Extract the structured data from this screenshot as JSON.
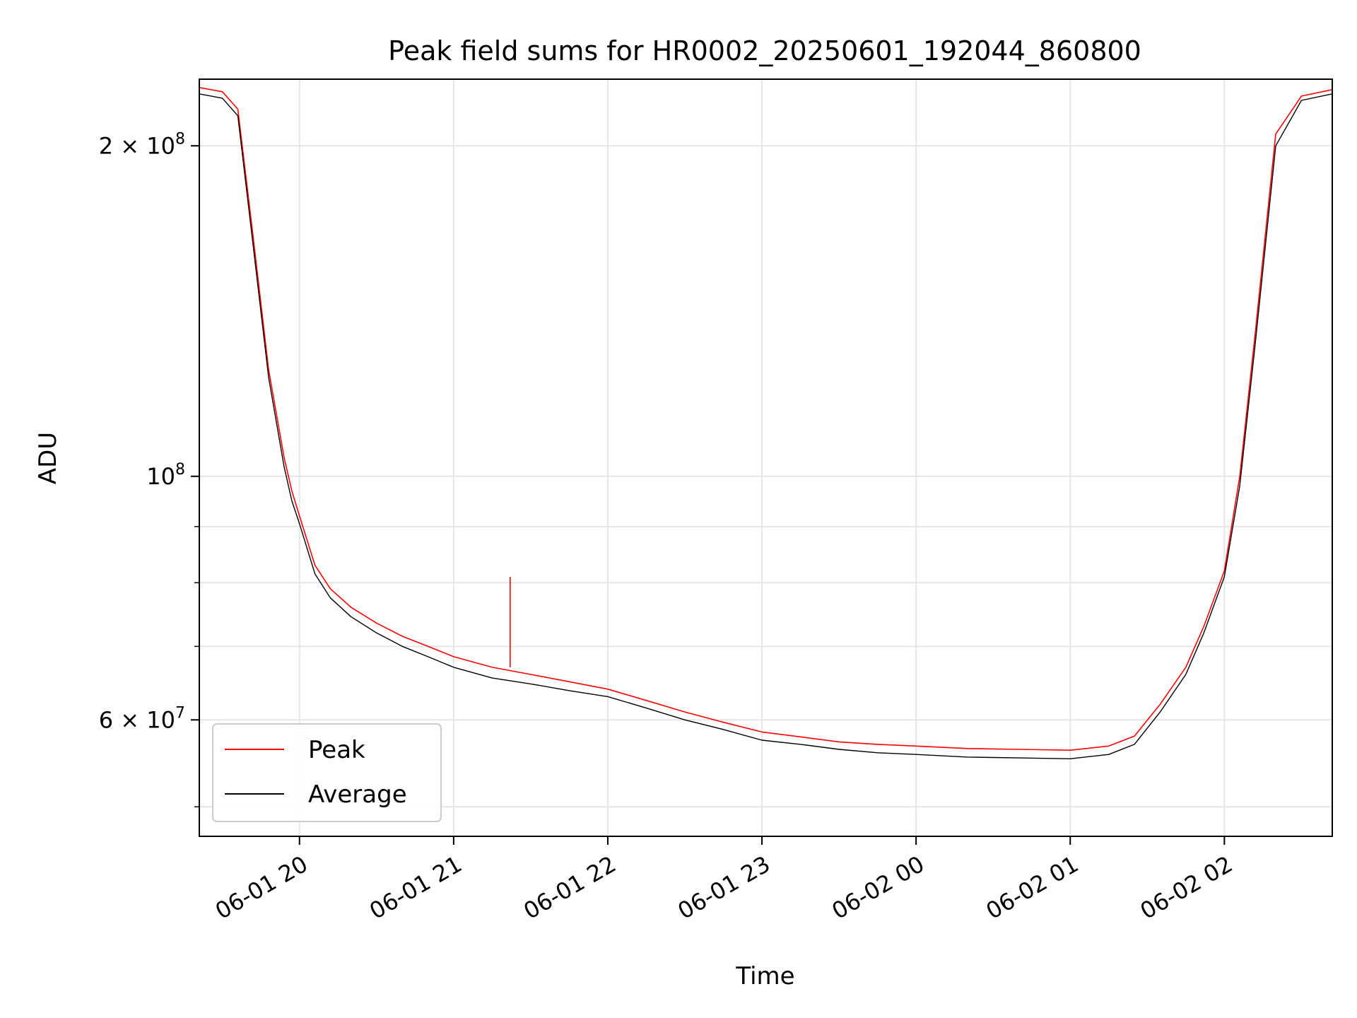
{
  "chart_data": {
    "type": "line",
    "title": "Peak field sums for HR0002_20250601_192044_860800",
    "xlabel": "Time",
    "ylabel": "ADU",
    "yscale": "log",
    "grid": true,
    "legend_position": "lower-left",
    "xlim": [
      "2025-06-01T19:21",
      "2025-06-02T02:42"
    ],
    "ylim": [
      47000000,
      230000000
    ],
    "x_ticks": [
      {
        "value": "2025-06-01T20:00",
        "label": "06-01 20"
      },
      {
        "value": "2025-06-01T21:00",
        "label": "06-01 21"
      },
      {
        "value": "2025-06-01T22:00",
        "label": "06-01 22"
      },
      {
        "value": "2025-06-01T23:00",
        "label": "06-01 23"
      },
      {
        "value": "2025-06-02T00:00",
        "label": "06-02 00"
      },
      {
        "value": "2025-06-02T01:00",
        "label": "06-02 01"
      },
      {
        "value": "2025-06-02T02:00",
        "label": "06-02 02"
      }
    ],
    "y_ticks_major": [
      {
        "value": 200000000,
        "label_base": "2 × 10",
        "label_exp": "8"
      },
      {
        "value": 100000000,
        "label_base": "10",
        "label_exp": "8"
      },
      {
        "value": 60000000,
        "label_base": "6 × 10",
        "label_exp": "7"
      }
    ],
    "y_ticks_minor": [
      50000000,
      70000000,
      80000000,
      90000000
    ],
    "series": [
      {
        "name": "Peak",
        "color": "#ff0000",
        "x": [
          "2025-06-01T19:21",
          "2025-06-01T19:30",
          "2025-06-01T19:36",
          "2025-06-01T19:42",
          "2025-06-01T19:48",
          "2025-06-01T19:54",
          "2025-06-01T19:57",
          "2025-06-01T20:00",
          "2025-06-01T20:06",
          "2025-06-01T20:12",
          "2025-06-01T20:20",
          "2025-06-01T20:30",
          "2025-06-01T20:40",
          "2025-06-01T20:50",
          "2025-06-01T21:00",
          "2025-06-01T21:15",
          "2025-06-01T21:30",
          "2025-06-01T21:45",
          "2025-06-01T22:00",
          "2025-06-01T22:15",
          "2025-06-01T22:30",
          "2025-06-01T22:45",
          "2025-06-01T23:00",
          "2025-06-01T23:15",
          "2025-06-01T23:30",
          "2025-06-01T23:45",
          "2025-06-02T00:00",
          "2025-06-02T00:20",
          "2025-06-02T00:40",
          "2025-06-02T01:00",
          "2025-06-02T01:15",
          "2025-06-02T01:25",
          "2025-06-02T01:35",
          "2025-06-02T01:45",
          "2025-06-02T01:52",
          "2025-06-02T02:00",
          "2025-06-02T02:06",
          "2025-06-02T02:12",
          "2025-06-02T02:20",
          "2025-06-02T02:30",
          "2025-06-02T02:42"
        ],
        "values": [
          226000000,
          224000000,
          216000000,
          165000000,
          125000000,
          104000000,
          97000000,
          92000000,
          83000000,
          79000000,
          76000000,
          73500000,
          71500000,
          70000000,
          68500000,
          67000000,
          66000000,
          65000000,
          64000000,
          62500000,
          61000000,
          59700000,
          58500000,
          57900000,
          57300000,
          57000000,
          56800000,
          56500000,
          56400000,
          56300000,
          56800000,
          58000000,
          62000000,
          67000000,
          73000000,
          82000000,
          100000000,
          135000000,
          205000000,
          222000000,
          225000000
        ]
      },
      {
        "name": "Average",
        "color": "#000000",
        "x": [
          "2025-06-01T19:21",
          "2025-06-01T19:30",
          "2025-06-01T19:36",
          "2025-06-01T19:42",
          "2025-06-01T19:48",
          "2025-06-01T19:54",
          "2025-06-01T19:57",
          "2025-06-01T20:00",
          "2025-06-01T20:06",
          "2025-06-01T20:12",
          "2025-06-01T20:20",
          "2025-06-01T20:30",
          "2025-06-01T20:40",
          "2025-06-01T20:50",
          "2025-06-01T21:00",
          "2025-06-01T21:15",
          "2025-06-01T21:30",
          "2025-06-01T21:45",
          "2025-06-01T22:00",
          "2025-06-01T22:15",
          "2025-06-01T22:30",
          "2025-06-01T22:45",
          "2025-06-01T23:00",
          "2025-06-01T23:15",
          "2025-06-01T23:30",
          "2025-06-01T23:45",
          "2025-06-02T00:00",
          "2025-06-02T00:20",
          "2025-06-02T00:40",
          "2025-06-02T01:00",
          "2025-06-02T01:15",
          "2025-06-02T01:25",
          "2025-06-02T01:35",
          "2025-06-02T01:45",
          "2025-06-02T01:52",
          "2025-06-02T02:00",
          "2025-06-02T02:06",
          "2025-06-02T02:12",
          "2025-06-02T02:20",
          "2025-06-02T02:30",
          "2025-06-02T02:42"
        ],
        "values": [
          223000000,
          221000000,
          213000000,
          162000000,
          123000000,
          102000000,
          95000000,
          90500000,
          81500000,
          77500000,
          74500000,
          72000000,
          70000000,
          68500000,
          67000000,
          65500000,
          64700000,
          63800000,
          63000000,
          61500000,
          60000000,
          58800000,
          57500000,
          57000000,
          56400000,
          56000000,
          55800000,
          55500000,
          55400000,
          55300000,
          55800000,
          57000000,
          61000000,
          66000000,
          72000000,
          81000000,
          98000000,
          132000000,
          200000000,
          220000000,
          223000000
        ]
      }
    ],
    "annotations": [
      {
        "series": "Peak",
        "x": "2025-06-01T21:22",
        "value": 81000000,
        "note": "single spike"
      }
    ]
  }
}
